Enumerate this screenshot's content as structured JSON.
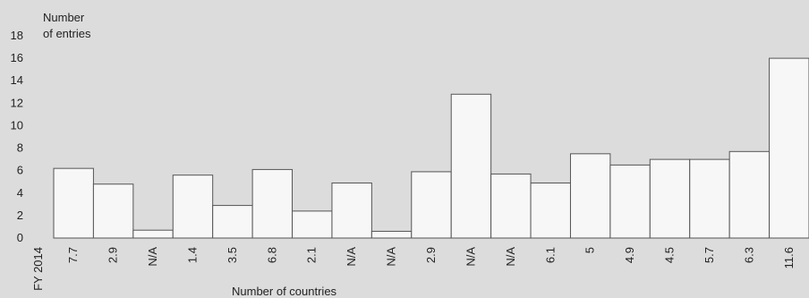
{
  "chart_data": {
    "type": "bar",
    "ylabel_line1": "Number",
    "ylabel_line2": "of entries",
    "xlabel": "Number of countries",
    "first_label": "FY 2014",
    "ylim": [
      0,
      18
    ],
    "yticks": [
      0,
      2,
      4,
      6,
      8,
      10,
      12,
      14,
      16,
      18
    ],
    "categories": [
      "7.7",
      "2.9",
      "N/A",
      "1.4",
      "3.5",
      "6.8",
      "2.1",
      "N/A",
      "N/A",
      "2.9",
      "N/A",
      "N/A",
      "6.1",
      "5",
      "4.9",
      "4.5",
      "5.7",
      "6.3",
      "11.6"
    ],
    "values": [
      6.2,
      4.8,
      0.7,
      5.6,
      2.9,
      6.1,
      2.4,
      4.9,
      0.6,
      5.9,
      12.8,
      5.7,
      4.9,
      7.5,
      6.5,
      7.0,
      7.0,
      7.7,
      16.0
    ],
    "bar_fill": "#f7f7f7",
    "bar_stroke": "#555555"
  }
}
